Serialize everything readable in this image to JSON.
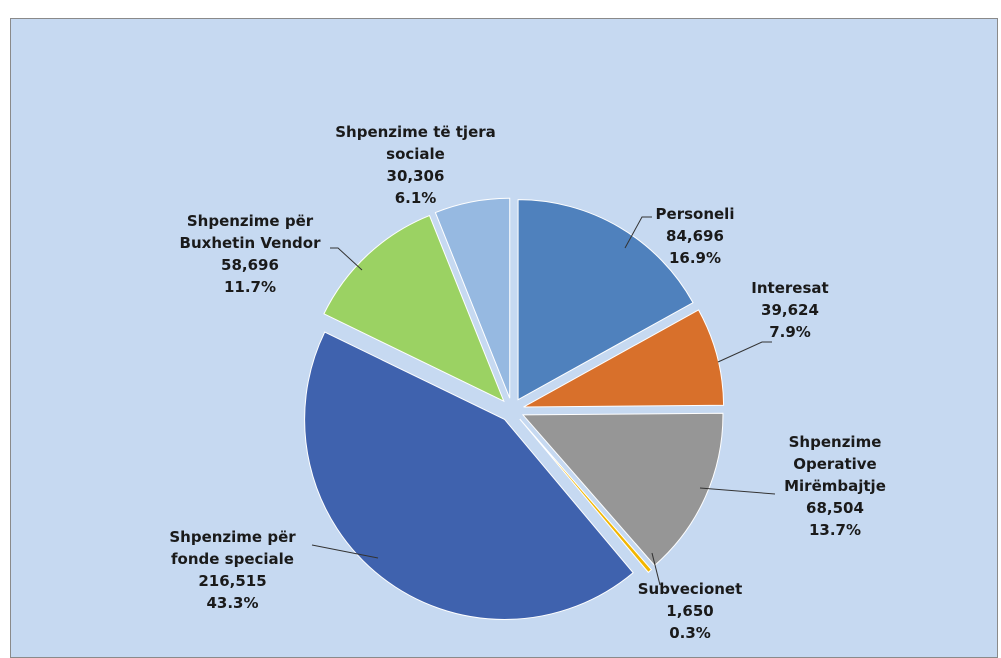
{
  "chart_data": {
    "type": "pie",
    "categories": [
      "Personeli",
      "Interesat",
      "Shpenzime Operative Mirëmbajtje",
      "Subvecionet",
      "Shpenzime për fonde speciale",
      "Shpenzime për Buxhetin Vendor",
      "Shpenzime të tjera sociale"
    ],
    "values": [
      84696,
      39624,
      68504,
      1650,
      216515,
      58696,
      30306
    ],
    "value_labels": [
      "84,696",
      "39,624",
      "68,504",
      "1,650",
      "216,515",
      "58,696",
      "30,306"
    ],
    "percents": [
      16.9,
      7.9,
      13.7,
      0.3,
      43.3,
      11.7,
      6.1
    ],
    "percent_labels": [
      "16.9%",
      "7.9%",
      "13.7%",
      "0.3%",
      "43.3%",
      "11.7%",
      "6.1%"
    ],
    "colors": [
      "#4f81bd",
      "#d8702b",
      "#969696",
      "#f2b600",
      "#3f62ae",
      "#9bd263",
      "#96b9e1"
    ]
  }
}
